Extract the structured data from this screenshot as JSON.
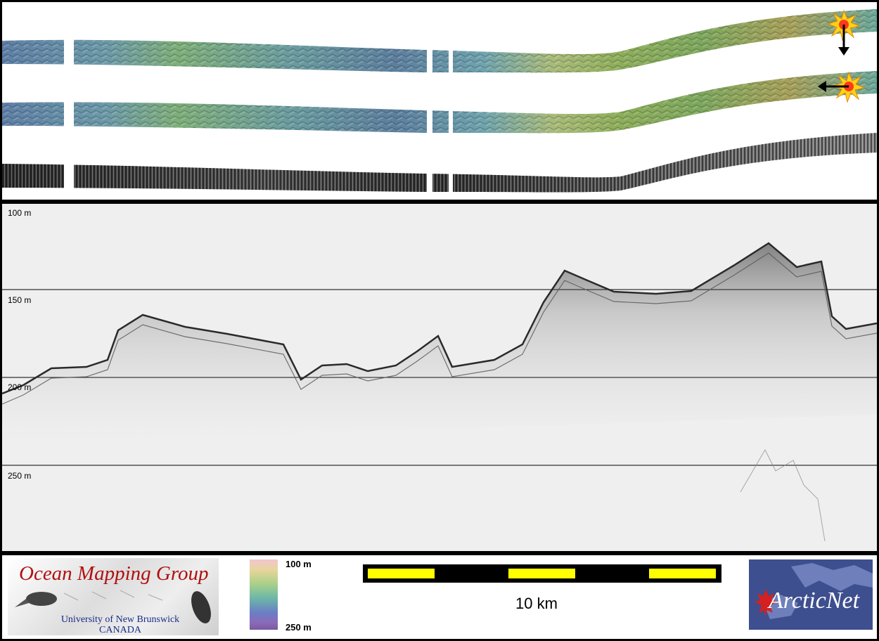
{
  "depth_labels": [
    "100 m",
    "150 m",
    "200 m",
    "250 m"
  ],
  "colorbar": {
    "top_label": "100 m",
    "bottom_label": "250 m"
  },
  "scale_bar": {
    "label": "10 km",
    "colors": {
      "fill": "#ffff00",
      "bar": "#000000"
    }
  },
  "logo_omg": {
    "title": "Ocean Mapping Group",
    "subtitle_1": "University of New Brunswick",
    "subtitle_2": "CANADA"
  },
  "logo_arcticnet": {
    "text": "ArcticNet"
  },
  "direction_arrows": [
    "arrow-down-icon",
    "arrow-left-icon"
  ],
  "colors": {
    "profile_bg": "#efefef",
    "grid_line": "#000000"
  }
}
